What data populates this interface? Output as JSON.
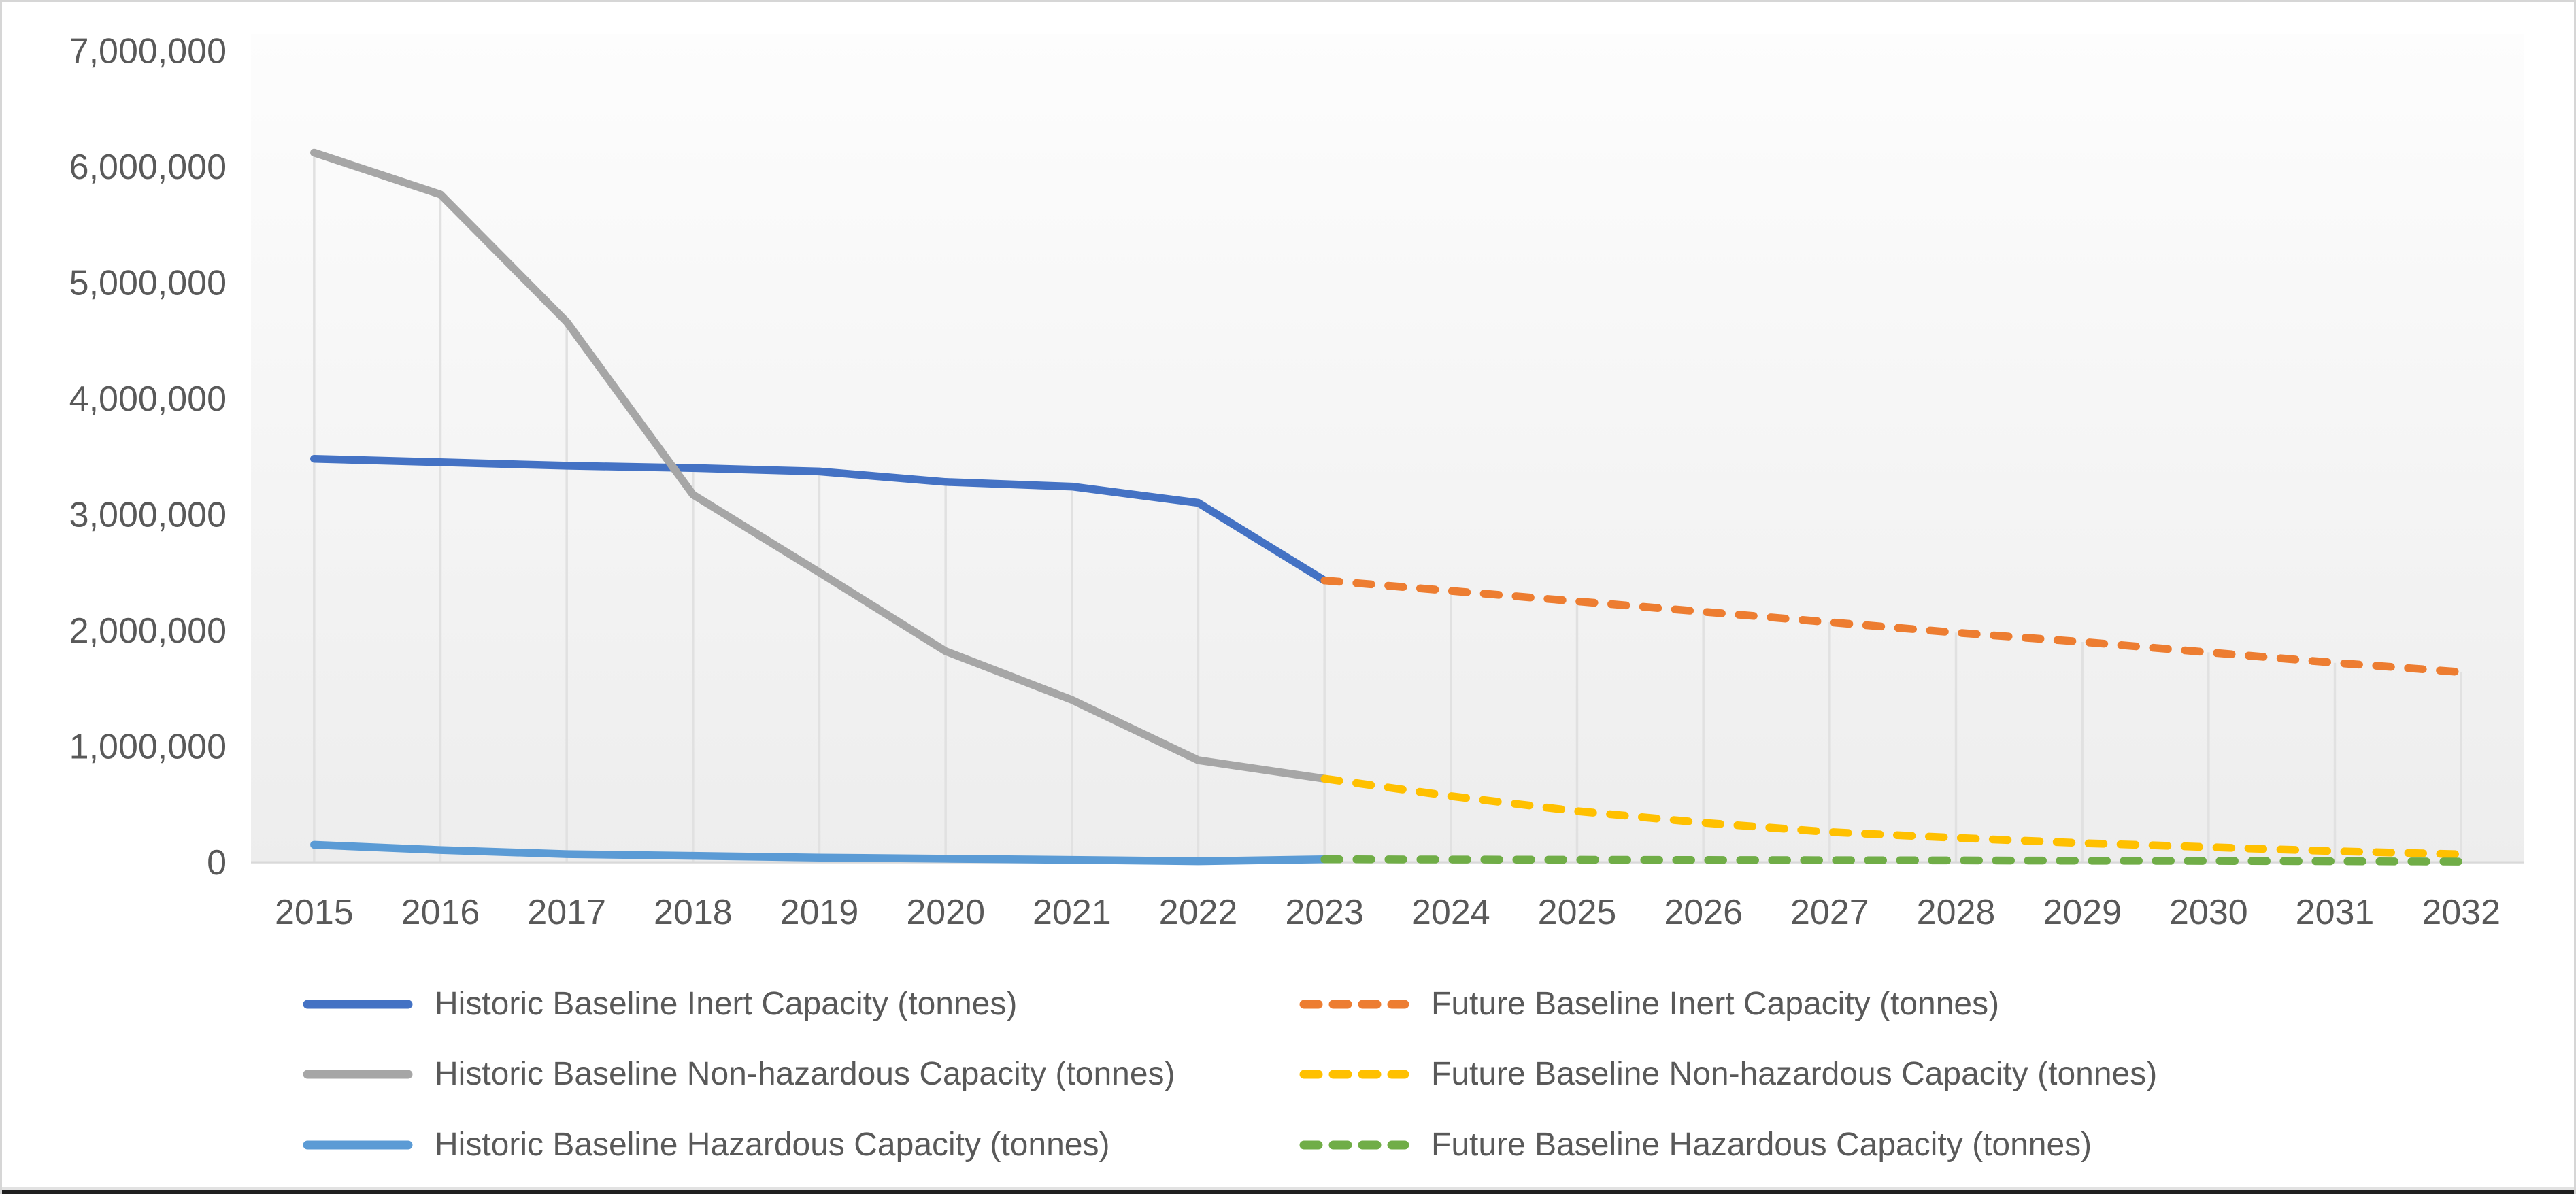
{
  "chart_data": {
    "type": "line",
    "title": "",
    "xlabel": "",
    "ylabel": "",
    "x_labels": [
      "2015",
      "2016",
      "2017",
      "2018",
      "2019",
      "2020",
      "2021",
      "2022",
      "2023",
      "2024",
      "2025",
      "2026",
      "2027",
      "2028",
      "2029",
      "2030",
      "2031",
      "2032"
    ],
    "y_tick_labels": [
      "0",
      "1,000,000",
      "2,000,000",
      "3,000,000",
      "4,000,000",
      "5,000,000",
      "6,000,000",
      "7,000,000"
    ],
    "ylim": [
      0,
      7000000
    ],
    "grid": "vertical drop lines from topmost series down to x-axis, no horizontal gridlines",
    "legend_position": "bottom, two columns (historic left, future right)",
    "series": [
      {
        "name": "Historic Baseline Inert Capacity (tonnes)",
        "pattern": "solid",
        "color": "#4472C4",
        "start_year": 2015,
        "values": [
          3480000,
          3450000,
          3420000,
          3400000,
          3370000,
          3280000,
          3240000,
          3100000,
          2430000
        ]
      },
      {
        "name": "Historic Baseline Non-hazardous Capacity (tonnes)",
        "pattern": "solid",
        "color": "#A6A6A6",
        "start_year": 2015,
        "values": [
          6120000,
          5760000,
          4660000,
          3170000,
          2500000,
          1820000,
          1400000,
          880000,
          720000
        ]
      },
      {
        "name": "Historic Baseline Hazardous Capacity (tonnes)",
        "pattern": "solid",
        "color": "#5B9BD5",
        "start_year": 2015,
        "values": [
          150000,
          105000,
          70000,
          55000,
          40000,
          30000,
          20000,
          8000,
          25000
        ]
      },
      {
        "name": "Future Baseline Inert Capacity (tonnes)",
        "pattern": "dashed",
        "color": "#ED7D31",
        "start_year": 2023,
        "values": [
          2430000,
          2340000,
          2250000,
          2160000,
          2070000,
          1980000,
          1900000,
          1810000,
          1720000,
          1640000
        ]
      },
      {
        "name": "Future Baseline Non-hazardous Capacity (tonnes)",
        "pattern": "dashed",
        "color": "#FFC000",
        "start_year": 2023,
        "values": [
          720000,
          570000,
          440000,
          340000,
          260000,
          210000,
          165000,
          130000,
          95000,
          68000
        ]
      },
      {
        "name": "Future Baseline Hazardous Capacity (tonnes)",
        "pattern": "dashed",
        "color": "#70AD47",
        "start_year": 2023,
        "values": [
          25000,
          23000,
          21000,
          19000,
          17000,
          15000,
          13000,
          11000,
          8000,
          5000
        ]
      }
    ]
  },
  "colors": {
    "axis_text": "#595959",
    "drop_line": "#E1E1E1",
    "axis_line": "#D9D9D9",
    "plot_bg_top": "#FDFDFD",
    "plot_bg_bottom": "#EDEDED"
  }
}
